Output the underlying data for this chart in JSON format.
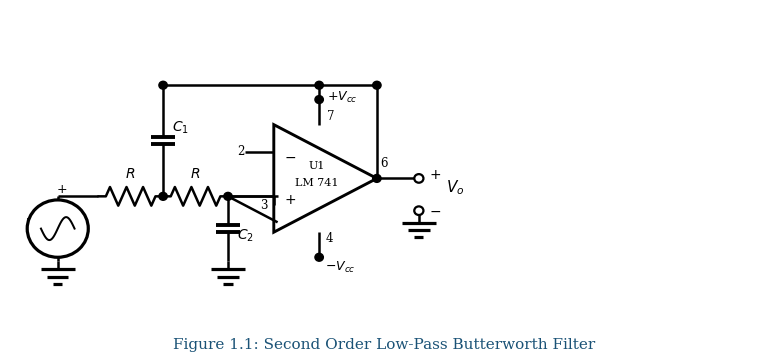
{
  "title": "Figure 1.1: Second Order Low-Pass Butterworth Filter",
  "title_color": "#1a5276",
  "title_fontsize": 11,
  "bg_color": "#ffffff",
  "line_color": "#000000",
  "lw": 1.8,
  "figsize": [
    7.69,
    3.64
  ],
  "dpi": 100,
  "xlim": [
    0,
    10
  ],
  "ylim": [
    0,
    5
  ]
}
